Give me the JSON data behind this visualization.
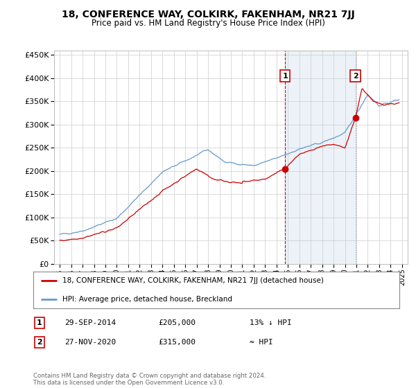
{
  "title": "18, CONFERENCE WAY, COLKIRK, FAKENHAM, NR21 7JJ",
  "subtitle": "Price paid vs. HM Land Registry's House Price Index (HPI)",
  "legend_line1": "18, CONFERENCE WAY, COLKIRK, FAKENHAM, NR21 7JJ (detached house)",
  "legend_line2": "HPI: Average price, detached house, Breckland",
  "footer": "Contains HM Land Registry data © Crown copyright and database right 2024.\nThis data is licensed under the Open Government Licence v3.0.",
  "annotation1_label": "1",
  "annotation1_date": "29-SEP-2014",
  "annotation1_price": "£205,000",
  "annotation1_note": "13% ↓ HPI",
  "annotation2_label": "2",
  "annotation2_date": "27-NOV-2020",
  "annotation2_price": "£315,000",
  "annotation2_note": "≈ HPI",
  "sale1_x": 2014.75,
  "sale1_y": 205000,
  "sale2_x": 2020.92,
  "sale2_y": 315000,
  "vline1_x": 2014.75,
  "vline2_x": 2020.92,
  "red_color": "#cc0000",
  "blue_color": "#6699cc",
  "ylim": [
    0,
    460000
  ],
  "xlim_left": 1994.5,
  "xlim_right": 2025.5,
  "background_color": "#ffffff",
  "grid_color": "#cccccc"
}
